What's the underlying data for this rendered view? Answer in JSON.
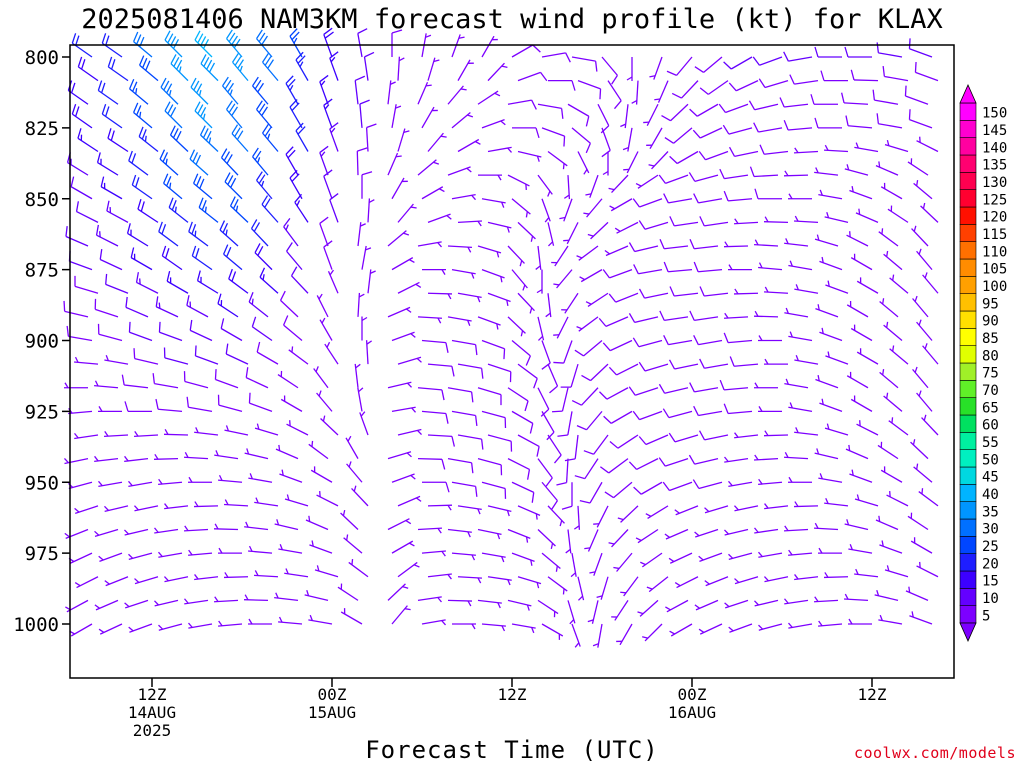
{
  "credit": "coolwx.com/models",
  "chart_data": {
    "type": "wind-barb-time-height",
    "title": "2025081406 NAM3KM forecast wind profile (kt) for KLAX",
    "xlabel": "Forecast Time (UTC)",
    "ylabel": "",
    "x_ticks": [
      {
        "hour": 6,
        "lines": [
          "12Z",
          "14AUG",
          "2025"
        ]
      },
      {
        "hour": 18,
        "lines": [
          "00Z",
          "15AUG"
        ]
      },
      {
        "hour": 30,
        "lines": [
          "12Z"
        ]
      },
      {
        "hour": 42,
        "lines": [
          "00Z",
          "16AUG"
        ]
      },
      {
        "hour": 54,
        "lines": [
          "12Z"
        ]
      }
    ],
    "xlim_hours": [
      0,
      60
    ],
    "y_ticks": [
      800,
      825,
      850,
      875,
      900,
      925,
      950,
      975,
      1000
    ],
    "ylim_hpa": [
      1020,
      795
    ],
    "y_scale": "linear-inverted",
    "surface_pressure_hpa": [
      1010,
      1010,
      1011,
      1010,
      1011,
      1009,
      1009,
      1008,
      1009,
      1010,
      1010,
      1011
    ],
    "grid": false,
    "legend": "right",
    "speed_scale_kt": [
      {
        "value": "5",
        "color": "#7d00ff"
      },
      {
        "value": "10",
        "color": "#6400ff"
      },
      {
        "value": "15",
        "color": "#3c00ff"
      },
      {
        "value": "20",
        "color": "#1e1eff"
      },
      {
        "value": "25",
        "color": "#0046ff"
      },
      {
        "value": "30",
        "color": "#0070ff"
      },
      {
        "value": "35",
        "color": "#0096ff"
      },
      {
        "value": "40",
        "color": "#00b4ff"
      },
      {
        "value": "45",
        "color": "#00d8e0"
      },
      {
        "value": "50",
        "color": "#00f0c0"
      },
      {
        "value": "55",
        "color": "#00f0a0"
      },
      {
        "value": "60",
        "color": "#00e060"
      },
      {
        "value": "65",
        "color": "#28e028"
      },
      {
        "value": "70",
        "color": "#60f028"
      },
      {
        "value": "75",
        "color": "#a0f028"
      },
      {
        "value": "80",
        "color": "#e0ff00"
      },
      {
        "value": "85",
        "color": "#ffff00"
      },
      {
        "value": "90",
        "color": "#ffe000"
      },
      {
        "value": "95",
        "color": "#ffc000"
      },
      {
        "value": "100",
        "color": "#ffa000"
      },
      {
        "value": "105",
        "color": "#ff8c00"
      },
      {
        "value": "110",
        "color": "#ff7000"
      },
      {
        "value": "115",
        "color": "#ff4000"
      },
      {
        "value": "120",
        "color": "#ff1000"
      },
      {
        "value": "125",
        "color": "#ff0030"
      },
      {
        "value": "130",
        "color": "#ff0050"
      },
      {
        "value": "135",
        "color": "#ff0070"
      },
      {
        "value": "140",
        "color": "#ff00a0"
      },
      {
        "value": "145",
        "color": "#ff00d0"
      },
      {
        "value": "150",
        "color": "#ff00ff"
      }
    ],
    "colors": {
      "barb_default": "#7d00ff",
      "ground": "#a0522d",
      "frame": "#000000"
    },
    "series": [
      {
        "pressure": 800,
        "hour_start": 0,
        "hour_step": 2,
        "dir_deg": [
          300,
          305,
          305,
          310,
          315,
          315,
          320,
          320,
          330,
          340,
          350,
          0,
          10,
          20,
          30,
          60,
          80,
          100,
          140,
          180,
          200,
          220,
          230,
          240,
          250,
          260,
          270,
          270,
          280,
          290,
          300
        ],
        "speed_kt": [
          12,
          20,
          22,
          30,
          38,
          40,
          38,
          32,
          25,
          18,
          12,
          8,
          6,
          6,
          6,
          8,
          8,
          8,
          8,
          6,
          6,
          8,
          8,
          10,
          10,
          10,
          10,
          10,
          10,
          10,
          8
        ]
      },
      {
        "pressure": 825,
        "hour_start": 0,
        "hour_step": 2,
        "dir_deg": [
          300,
          305,
          305,
          310,
          315,
          315,
          320,
          320,
          330,
          340,
          355,
          10,
          30,
          50,
          70,
          90,
          110,
          130,
          160,
          190,
          210,
          230,
          245,
          255,
          260,
          265,
          270,
          275,
          280,
          290,
          300
        ],
        "speed_kt": [
          12,
          18,
          20,
          26,
          32,
          35,
          32,
          28,
          22,
          15,
          10,
          6,
          5,
          5,
          6,
          8,
          8,
          8,
          8,
          6,
          6,
          8,
          8,
          8,
          8,
          8,
          8,
          8,
          8,
          8,
          6
        ]
      },
      {
        "pressure": 850,
        "hour_start": 0,
        "hour_step": 2,
        "dir_deg": [
          290,
          300,
          300,
          305,
          310,
          310,
          315,
          320,
          330,
          340,
          0,
          30,
          60,
          80,
          100,
          130,
          160,
          200,
          220,
          240,
          250,
          260,
          260,
          265,
          270,
          270,
          280,
          290,
          300,
          310,
          320
        ],
        "speed_kt": [
          10,
          12,
          15,
          20,
          25,
          28,
          28,
          24,
          18,
          12,
          8,
          6,
          6,
          6,
          6,
          6,
          6,
          6,
          6,
          6,
          8,
          8,
          8,
          8,
          8,
          6,
          6,
          6,
          6,
          6,
          6
        ]
      },
      {
        "pressure": 875,
        "hour_start": 0,
        "hour_step": 2,
        "dir_deg": [
          280,
          290,
          295,
          300,
          305,
          305,
          310,
          315,
          320,
          340,
          10,
          60,
          90,
          100,
          110,
          140,
          180,
          220,
          240,
          250,
          260,
          265,
          265,
          270,
          275,
          280,
          290,
          300,
          310,
          320,
          330
        ],
        "speed_kt": [
          8,
          10,
          12,
          15,
          18,
          20,
          22,
          18,
          12,
          8,
          6,
          6,
          6,
          6,
          6,
          6,
          6,
          6,
          6,
          8,
          8,
          8,
          8,
          6,
          6,
          6,
          6,
          6,
          6,
          6,
          5
        ]
      },
      {
        "pressure": 900,
        "hour_start": 0,
        "hour_step": 2,
        "dir_deg": [
          270,
          280,
          285,
          290,
          290,
          295,
          300,
          305,
          310,
          330,
          0,
          70,
          95,
          100,
          110,
          130,
          160,
          200,
          230,
          245,
          255,
          260,
          260,
          265,
          270,
          280,
          290,
          300,
          310,
          320,
          330
        ],
        "speed_kt": [
          6,
          8,
          8,
          10,
          12,
          12,
          12,
          10,
          8,
          6,
          5,
          6,
          8,
          8,
          8,
          8,
          8,
          8,
          8,
          8,
          8,
          8,
          8,
          8,
          6,
          6,
          6,
          6,
          6,
          5,
          5
        ]
      },
      {
        "pressure": 925,
        "hour_start": 0,
        "hour_step": 2,
        "dir_deg": [
          260,
          265,
          270,
          270,
          275,
          280,
          285,
          290,
          300,
          320,
          350,
          80,
          95,
          100,
          105,
          120,
          150,
          190,
          220,
          240,
          250,
          255,
          260,
          265,
          270,
          280,
          290,
          300,
          310,
          320,
          330
        ],
        "speed_kt": [
          6,
          6,
          6,
          8,
          8,
          8,
          8,
          8,
          6,
          6,
          5,
          6,
          8,
          8,
          8,
          8,
          8,
          8,
          8,
          8,
          8,
          8,
          8,
          8,
          6,
          6,
          6,
          6,
          6,
          5,
          5
        ]
      },
      {
        "pressure": 950,
        "hour_start": 0,
        "hour_step": 2,
        "dir_deg": [
          250,
          255,
          260,
          260,
          265,
          270,
          275,
          280,
          290,
          300,
          320,
          70,
          90,
          100,
          105,
          115,
          140,
          180,
          210,
          230,
          240,
          250,
          255,
          260,
          265,
          270,
          280,
          290,
          300,
          310,
          320
        ],
        "speed_kt": [
          5,
          6,
          6,
          6,
          6,
          6,
          6,
          6,
          6,
          5,
          5,
          6,
          8,
          8,
          8,
          8,
          8,
          8,
          8,
          8,
          8,
          8,
          8,
          6,
          6,
          6,
          6,
          6,
          5,
          5,
          5
        ]
      },
      {
        "pressure": 975,
        "hour_start": 0,
        "hour_step": 2,
        "dir_deg": [
          240,
          245,
          250,
          255,
          260,
          265,
          270,
          275,
          280,
          290,
          310,
          60,
          85,
          95,
          100,
          110,
          130,
          170,
          200,
          220,
          235,
          245,
          250,
          255,
          260,
          265,
          270,
          280,
          290,
          300,
          310
        ],
        "speed_kt": [
          5,
          5,
          5,
          5,
          5,
          5,
          5,
          5,
          5,
          5,
          5,
          6,
          6,
          6,
          6,
          6,
          6,
          6,
          6,
          6,
          6,
          6,
          6,
          6,
          6,
          6,
          5,
          5,
          5,
          5,
          5
        ]
      },
      {
        "pressure": 1000,
        "hour_start": 0,
        "hour_step": 2,
        "dir_deg": [
          230,
          240,
          245,
          250,
          255,
          260,
          265,
          270,
          275,
          280,
          300,
          40,
          80,
          90,
          95,
          100,
          120,
          160,
          190,
          210,
          225,
          240,
          245,
          250,
          255,
          260,
          265,
          270,
          280,
          290,
          300
        ],
        "speed_kt": [
          5,
          5,
          5,
          5,
          5,
          5,
          5,
          5,
          5,
          5,
          5,
          5,
          5,
          5,
          5,
          5,
          5,
          5,
          5,
          5,
          5,
          5,
          5,
          5,
          5,
          5,
          5,
          5,
          5,
          5,
          5
        ]
      }
    ]
  }
}
